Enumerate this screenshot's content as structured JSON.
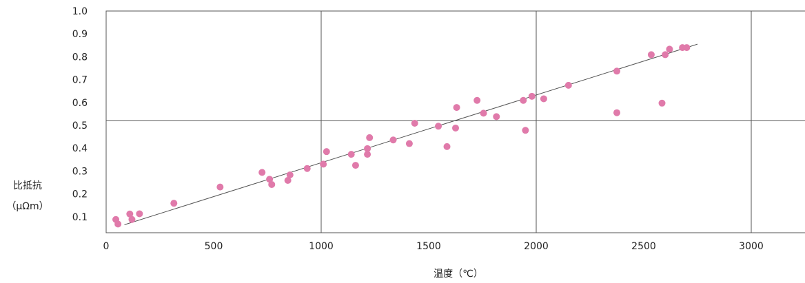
{
  "chart_data": {
    "type": "scatter",
    "title": "",
    "xlabel": "温度（℃）",
    "ylabel_line1": "比抵抗",
    "ylabel_line2": "（μΩm）",
    "xlim": [
      0,
      3250
    ],
    "ylim": [
      0.03,
      1.0
    ],
    "x_ticks": [
      {
        "value": 0,
        "label": "0"
      },
      {
        "value": 500,
        "label": "500"
      },
      {
        "value": 1000,
        "label": "1000"
      },
      {
        "value": 1500,
        "label": "1500"
      },
      {
        "value": 2000,
        "label": "2000"
      },
      {
        "value": 2500,
        "label": "2500"
      },
      {
        "value": 3000,
        "label": "3000"
      }
    ],
    "y_ticks": [
      {
        "value": 0.1,
        "label": "0.1"
      },
      {
        "value": 0.2,
        "label": "0.2"
      },
      {
        "value": 0.3,
        "label": "0.3"
      },
      {
        "value": 0.4,
        "label": "0.4"
      },
      {
        "value": 0.5,
        "label": "0.5"
      },
      {
        "value": 0.6,
        "label": "0.6"
      },
      {
        "value": 0.7,
        "label": "0.7"
      },
      {
        "value": 0.8,
        "label": "0.8"
      },
      {
        "value": 0.9,
        "label": "0.9"
      },
      {
        "value": 1.0,
        "label": "1.0"
      }
    ],
    "grid_x": [
      1000,
      2000,
      3000
    ],
    "grid_y": [
      0.52
    ],
    "trend_line": {
      "x": [
        85,
        2750
      ],
      "y": [
        0.065,
        0.855
      ],
      "color": "#555555"
    },
    "point_color": "#e07aaa",
    "points": [
      {
        "x": 45,
        "y": 0.088
      },
      {
        "x": 55,
        "y": 0.068
      },
      {
        "x": 110,
        "y": 0.112
      },
      {
        "x": 120,
        "y": 0.088
      },
      {
        "x": 155,
        "y": 0.113
      },
      {
        "x": 315,
        "y": 0.159
      },
      {
        "x": 530,
        "y": 0.23
      },
      {
        "x": 725,
        "y": 0.294
      },
      {
        "x": 760,
        "y": 0.264
      },
      {
        "x": 770,
        "y": 0.241
      },
      {
        "x": 845,
        "y": 0.259
      },
      {
        "x": 855,
        "y": 0.283
      },
      {
        "x": 935,
        "y": 0.311
      },
      {
        "x": 1010,
        "y": 0.33
      },
      {
        "x": 1025,
        "y": 0.385
      },
      {
        "x": 1140,
        "y": 0.373
      },
      {
        "x": 1160,
        "y": 0.325
      },
      {
        "x": 1215,
        "y": 0.398
      },
      {
        "x": 1215,
        "y": 0.373
      },
      {
        "x": 1225,
        "y": 0.446
      },
      {
        "x": 1335,
        "y": 0.436
      },
      {
        "x": 1410,
        "y": 0.42
      },
      {
        "x": 1435,
        "y": 0.509
      },
      {
        "x": 1545,
        "y": 0.496
      },
      {
        "x": 1585,
        "y": 0.407
      },
      {
        "x": 1625,
        "y": 0.488
      },
      {
        "x": 1630,
        "y": 0.578
      },
      {
        "x": 1725,
        "y": 0.609
      },
      {
        "x": 1755,
        "y": 0.553
      },
      {
        "x": 1815,
        "y": 0.538
      },
      {
        "x": 1940,
        "y": 0.609
      },
      {
        "x": 1950,
        "y": 0.478
      },
      {
        "x": 1980,
        "y": 0.627
      },
      {
        "x": 2035,
        "y": 0.616
      },
      {
        "x": 2150,
        "y": 0.675
      },
      {
        "x": 2375,
        "y": 0.737
      },
      {
        "x": 2375,
        "y": 0.555
      },
      {
        "x": 2535,
        "y": 0.809
      },
      {
        "x": 2585,
        "y": 0.597
      },
      {
        "x": 2600,
        "y": 0.809
      },
      {
        "x": 2620,
        "y": 0.833
      },
      {
        "x": 2680,
        "y": 0.84
      },
      {
        "x": 2700,
        "y": 0.84
      }
    ]
  }
}
